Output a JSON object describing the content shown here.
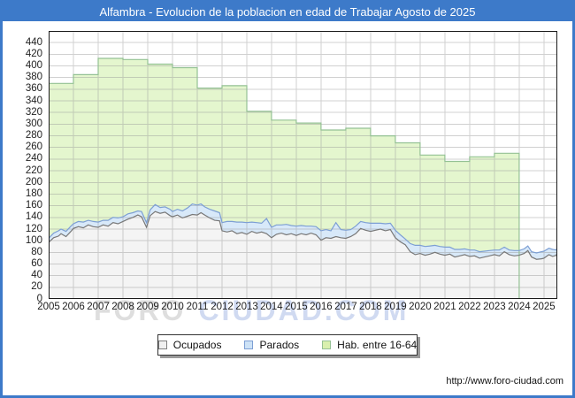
{
  "window": {
    "title": "Alfambra - Evolucion de la poblacion en edad de Trabajar Agosto de 2025"
  },
  "watermark": {
    "part1": "FORO",
    "part2": "CIUDAD.COM"
  },
  "footer": {
    "url": "http://www.foro-ciudad.com"
  },
  "colors": {
    "frame_blue": "#3d7ac9",
    "plot_border": "#1a1a1a",
    "grid": "rgba(150,150,150,0.45)",
    "green_fill": "#e4f6ce",
    "green_line": "#94c194",
    "blue_fill": "#d8e9f9",
    "blue_line": "#7d9fd4",
    "gray_fill": "#f4f4f4",
    "gray_line": "#787878"
  },
  "legend": {
    "items": [
      {
        "id": "ocupados",
        "label": "Ocupados",
        "swatch_fill": "#f0f0f0",
        "swatch_border": "#808080"
      },
      {
        "id": "parados",
        "label": "Parados",
        "swatch_fill": "#cde2f6",
        "swatch_border": "#7d9fd4"
      },
      {
        "id": "hab-16-64",
        "label": "Hab. entre 16-64",
        "swatch_fill": "#d9f0ae",
        "swatch_border": "#94c194"
      }
    ]
  },
  "chart_data": {
    "type": "area",
    "title": "Alfambra - Evolucion de la poblacion en edad de Trabajar Agosto de 2025",
    "xlabel": "",
    "ylabel": "",
    "grid": true,
    "legend_position": "bottom-center",
    "x_ticks": [
      2005,
      2006,
      2007,
      2008,
      2009,
      2010,
      2011,
      2012,
      2013,
      2014,
      2015,
      2016,
      2017,
      2018,
      2019,
      2020,
      2021,
      2022,
      2023,
      2024,
      2025
    ],
    "x_range": [
      2005,
      2025.54
    ],
    "y_ticks": [
      0,
      20,
      40,
      60,
      80,
      100,
      120,
      140,
      160,
      180,
      200,
      220,
      240,
      260,
      280,
      300,
      320,
      340,
      360,
      380,
      400,
      420,
      440
    ],
    "y_range": [
      0,
      460
    ],
    "x_monthly": [
      2005.0,
      2005.2,
      2005.4,
      2005.5,
      2005.7,
      2005.9,
      2006.0,
      2006.2,
      2006.4,
      2006.6,
      2006.8,
      2007.0,
      2007.2,
      2007.4,
      2007.6,
      2007.8,
      2008.0,
      2008.2,
      2008.4,
      2008.6,
      2008.75,
      2008.95,
      2009.1,
      2009.3,
      2009.5,
      2009.7,
      2009.9,
      2010.0,
      2010.2,
      2010.4,
      2010.6,
      2010.8,
      2011.0,
      2011.15,
      2011.3,
      2011.5,
      2011.7,
      2011.9,
      2012.0,
      2012.2,
      2012.4,
      2012.6,
      2012.8,
      2013.0,
      2013.2,
      2013.4,
      2013.6,
      2013.8,
      2014.0,
      2014.2,
      2014.4,
      2014.6,
      2014.8,
      2015.0,
      2015.2,
      2015.4,
      2015.6,
      2015.8,
      2016.0,
      2016.2,
      2016.4,
      2016.6,
      2016.8,
      2017.0,
      2017.2,
      2017.4,
      2017.6,
      2017.8,
      2018.0,
      2018.2,
      2018.4,
      2018.6,
      2018.8,
      2019.0,
      2019.2,
      2019.4,
      2019.6,
      2019.8,
      2020.0,
      2020.2,
      2020.4,
      2020.6,
      2020.8,
      2021.0,
      2021.2,
      2021.4,
      2021.6,
      2021.8,
      2022.0,
      2022.2,
      2022.4,
      2022.6,
      2022.8,
      2023.0,
      2023.2,
      2023.4,
      2023.6,
      2023.8,
      2024.0,
      2024.2,
      2024.35,
      2024.5,
      2024.7,
      2024.9,
      2025.0,
      2025.2,
      2025.35,
      2025.5,
      2025.54
    ],
    "series": [
      {
        "name": "Hab. entre 16-64",
        "type": "step_area",
        "line_color": "#94c194",
        "fill_color": "#e4f6ce",
        "years": [
          2005,
          2006,
          2007,
          2008,
          2009,
          2010,
          2011,
          2012,
          2013,
          2014,
          2015,
          2016,
          2017,
          2018,
          2019,
          2020,
          2021,
          2022,
          2023
        ],
        "values": [
          370,
          385,
          413,
          411,
          403,
          397,
          362,
          366,
          322,
          307,
          302,
          290,
          293,
          280,
          268,
          247,
          236,
          244,
          250
        ],
        "ends_at": 2024
      },
      {
        "name": "Ocupados",
        "type": "area",
        "line_color": "#787878",
        "fill_color": "#f4f4f4",
        "values": [
          97,
          105,
          108,
          112,
          107,
          116,
          121,
          124,
          122,
          127,
          124,
          123,
          127,
          125,
          131,
          129,
          133,
          137,
          140,
          144,
          141,
          123,
          143,
          150,
          147,
          149,
          143,
          141,
          144,
          139,
          142,
          145,
          144,
          148,
          144,
          139,
          135,
          134,
          117,
          115,
          117,
          112,
          114,
          111,
          116,
          113,
          115,
          112,
          105,
          111,
          113,
          110,
          112,
          109,
          112,
          110,
          113,
          110,
          101,
          105,
          104,
          107,
          105,
          104,
          107,
          112,
          121,
          118,
          116,
          118,
          120,
          117,
          119,
          105,
          98,
          93,
          81,
          76,
          78,
          75,
          77,
          80,
          77,
          75,
          77,
          72,
          74,
          76,
          73,
          74,
          70,
          72,
          74,
          76,
          74,
          81,
          76,
          74,
          75,
          78,
          83,
          72,
          68,
          69,
          70,
          76,
          73,
          75,
          80
        ]
      },
      {
        "name": "Parados",
        "type": "area_stacked_on_ocupados",
        "line_color": "#7d9fd4",
        "fill_color": "#d8e9f9",
        "values": [
          7,
          8,
          9,
          8,
          9,
          9,
          8,
          9,
          10,
          8,
          9,
          9,
          8,
          10,
          9,
          10,
          8,
          9,
          8,
          7,
          9,
          8,
          10,
          12,
          10,
          9,
          11,
          9,
          10,
          12,
          14,
          18,
          17,
          15,
          14,
          15,
          16,
          14,
          14,
          18,
          16,
          20,
          18,
          20,
          16,
          18,
          15,
          26,
          18,
          16,
          14,
          18,
          14,
          16,
          14,
          15,
          12,
          14,
          16,
          14,
          13,
          24,
          14,
          14,
          12,
          13,
          12,
          13,
          14,
          12,
          10,
          12,
          11,
          13,
          12,
          10,
          14,
          16,
          14,
          15,
          14,
          12,
          13,
          14,
          12,
          13,
          11,
          10,
          11,
          10,
          11,
          10,
          9,
          8,
          10,
          8,
          8,
          9,
          8,
          8,
          8,
          9,
          11,
          12,
          12,
          11,
          12,
          9,
          10
        ]
      }
    ]
  }
}
